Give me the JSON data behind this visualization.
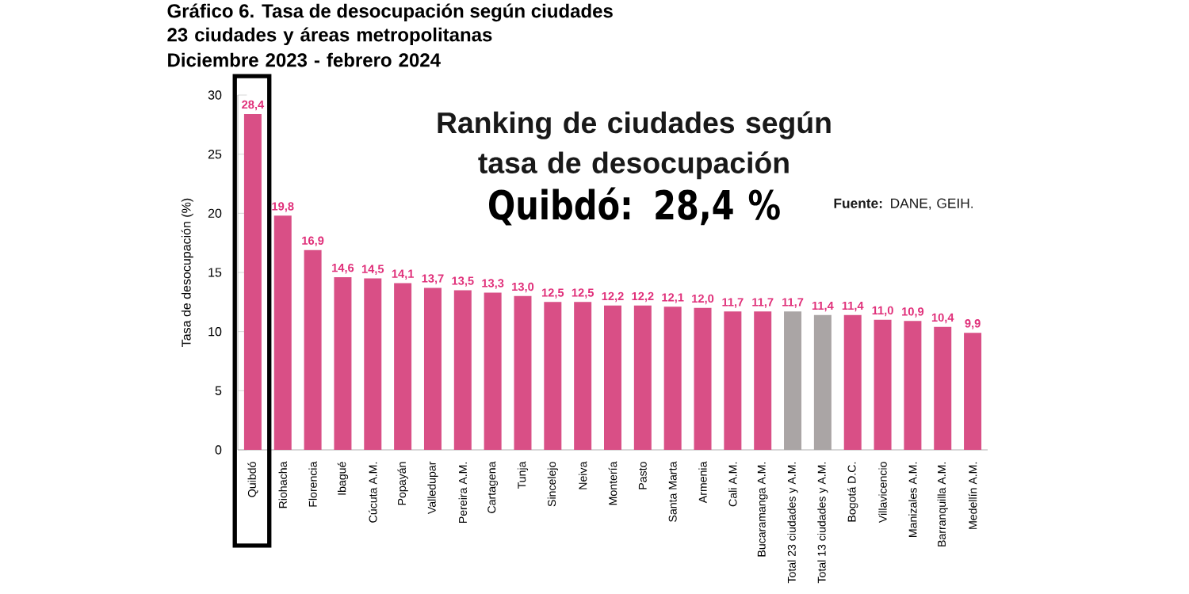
{
  "chart_data": {
    "type": "bar",
    "title": "Gráfico 6. Tasa de desocupación según ciudades",
    "subtitle": "23 ciudades y áreas metropolitanas\nDiciembre 2023 - febrero 2024",
    "ylabel": "Tasa de desocupación (%)",
    "annotations": [
      "Ranking de ciudades según tasa de desocupación",
      "Quibdó: 28,4 %",
      "**Fuente:** DANE, GEIH."
    ],
    "categories": [
      "Quibdó",
      "Riohacha",
      "Florencia",
      "Ibagué",
      "Cúcuta A.M.",
      "Popayán",
      "Valledupar",
      "Pereira A.M.",
      "Cartagena",
      "Tunja",
      "Sincelejo",
      "Neiva",
      "Montería",
      "Pasto",
      "Santa Marta",
      "Armenia",
      "Cali A.M.",
      "Bucaramanga A.M.",
      "Total 23 ciudades y A.M.",
      "Total 13 ciudades y A.M.",
      "Bogotá D.C.",
      "Villavicencio",
      "Manizales A.M.",
      "Barranquilla A.M.",
      "Medellín A.M."
    ],
    "values": [
      28.4,
      19.8,
      16.9,
      14.6,
      14.5,
      14.1,
      13.7,
      13.5,
      13.3,
      13.0,
      12.5,
      12.5,
      12.2,
      12.2,
      12.1,
      12.0,
      11.7,
      11.7,
      11.7,
      11.4,
      11.4,
      11.0,
      10.9,
      10.4,
      9.9
    ],
    "value_labels": [
      "28,4",
      "19,8",
      "16,9",
      "14,6",
      "14,5",
      "14,1",
      "13,7",
      "13,5",
      "13,3",
      "13,0",
      "12,5",
      "12,5",
      "12,2",
      "12,2",
      "12,1",
      "12,0",
      "11,7",
      "11,7",
      "11,7",
      "11,4",
      "11,4",
      "11,0",
      "10,9",
      "10,4",
      "9,9"
    ],
    "colors": [
      "#d94f86",
      "#d94f86",
      "#d94f86",
      "#d94f86",
      "#d94f86",
      "#d94f86",
      "#d94f86",
      "#d94f86",
      "#d94f86",
      "#d94f86",
      "#d94f86",
      "#d94f86",
      "#d94f86",
      "#d94f86",
      "#d94f86",
      "#d94f86",
      "#d94f86",
      "#d94f86",
      "#aaa5a5",
      "#aaa5a5",
      "#d94f86",
      "#d94f86",
      "#d94f86",
      "#d94f86",
      "#d94f86"
    ],
    "ylim": [
      0,
      30
    ],
    "yticks": [
      0,
      5,
      10,
      15,
      20,
      25,
      30
    ]
  }
}
